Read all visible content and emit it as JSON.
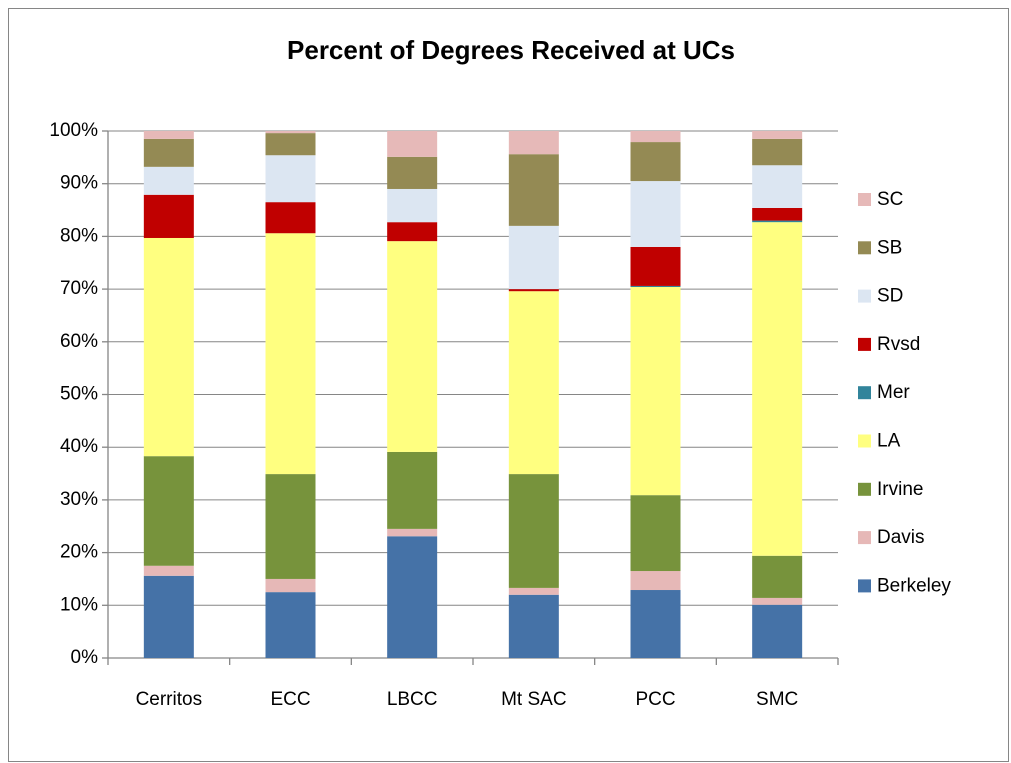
{
  "chart_data": {
    "type": "stacked-bar",
    "title": "Percent of Degrees Received at UCs",
    "categories": [
      "Cerritos",
      "ECC",
      "LBCC",
      "Mt SAC",
      "PCC",
      "SMC"
    ],
    "series": [
      {
        "name": "Berkeley",
        "color": "#4572a7",
        "values": [
          15.6,
          12.5,
          23.1,
          12.0,
          12.9,
          10.1
        ]
      },
      {
        "name": "Davis",
        "color": "#e6b8b7",
        "values": [
          1.9,
          2.5,
          1.4,
          1.3,
          3.6,
          1.3
        ]
      },
      {
        "name": "Irvine",
        "color": "#77933c",
        "values": [
          20.8,
          19.9,
          14.6,
          21.6,
          14.4,
          8.0
        ]
      },
      {
        "name": "LA",
        "color": "#ffff80",
        "values": [
          41.4,
          45.7,
          40.0,
          34.7,
          39.5,
          63.3
        ]
      },
      {
        "name": "Mer",
        "color": "#31849b",
        "values": [
          0,
          0,
          0,
          0,
          0.2,
          0.3
        ]
      },
      {
        "name": "Rvsd",
        "color": "#c00000",
        "values": [
          8.2,
          5.9,
          3.6,
          0.4,
          7.4,
          2.4
        ]
      },
      {
        "name": "SD",
        "color": "#dce6f2",
        "values": [
          5.3,
          8.9,
          6.3,
          12.0,
          12.5,
          8.1
        ]
      },
      {
        "name": "SB",
        "color": "#948a54",
        "values": [
          5.3,
          4.2,
          6.1,
          13.6,
          7.4,
          5.0
        ]
      },
      {
        "name": "SC",
        "color": "#e6b9b8",
        "values": [
          1.5,
          0.4,
          4.9,
          4.4,
          2.1,
          1.5
        ]
      }
    ],
    "ylim": [
      0,
      100
    ],
    "yticks": [
      {
        "value": 0,
        "label": "0%"
      },
      {
        "value": 10,
        "label": "10%"
      },
      {
        "value": 20,
        "label": "20%"
      },
      {
        "value": 30,
        "label": "30%"
      },
      {
        "value": 40,
        "label": "40%"
      },
      {
        "value": 50,
        "label": "50%"
      },
      {
        "value": 60,
        "label": "60%"
      },
      {
        "value": 70,
        "label": "70%"
      },
      {
        "value": 80,
        "label": "80%"
      },
      {
        "value": 90,
        "label": "90%"
      },
      {
        "value": 100,
        "label": "100%"
      }
    ],
    "grid": true,
    "legend": "right"
  }
}
